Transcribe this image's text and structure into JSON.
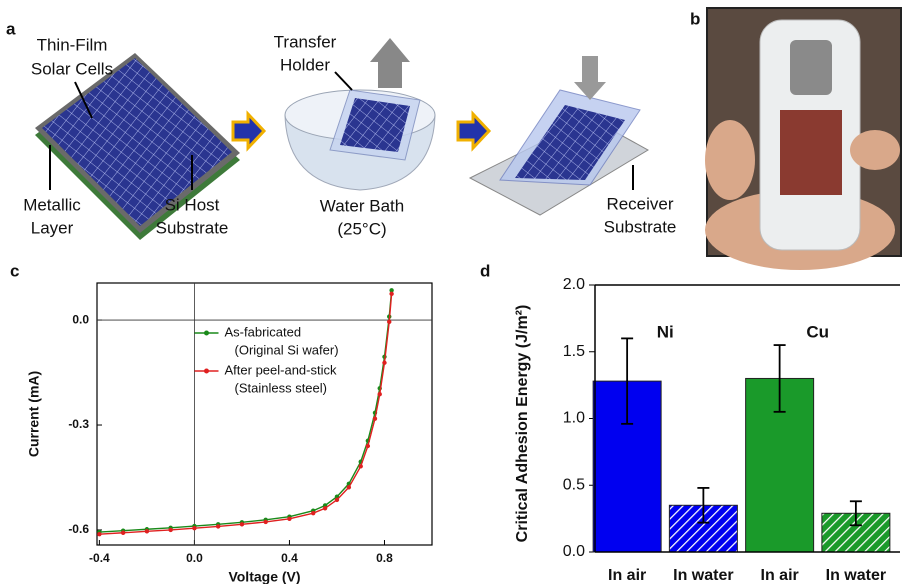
{
  "panel_a": {
    "label": "a",
    "labels": [
      [
        "Thin-Film",
        "Solar Cells"
      ],
      [
        "Metallic",
        "Layer"
      ],
      [
        "Si Host",
        "Substrate"
      ],
      [
        "Transfer",
        "Holder"
      ],
      [
        "Water Bath",
        "(25°C)"
      ],
      [
        "Receiver",
        "Substrate"
      ]
    ]
  },
  "panel_b": {
    "label": "b"
  },
  "chart_data": [
    {
      "type": "line",
      "panel": "c",
      "xlabel": "Voltage (V)",
      "ylabel": "Current (mA)",
      "x": [
        -0.4,
        -0.3,
        -0.2,
        -0.1,
        0,
        0.1,
        0.2,
        0.3,
        0.4,
        0.5,
        0.55,
        0.6,
        0.65,
        0.7,
        0.73,
        0.76,
        0.78,
        0.8,
        0.82,
        0.83
      ],
      "series": [
        {
          "name": "As-fabricated",
          "description": "(Original Si wafer)",
          "color": "#1a8a1a",
          "values": [
            -0.606,
            -0.602,
            -0.598,
            -0.594,
            -0.589,
            -0.584,
            -0.578,
            -0.571,
            -0.562,
            -0.545,
            -0.53,
            -0.505,
            -0.468,
            -0.405,
            -0.345,
            -0.265,
            -0.195,
            -0.105,
            0.01,
            0.085
          ]
        },
        {
          "name": "After peel-and-stick",
          "description": "(Stainless steel)",
          "color": "#e02020",
          "values": [
            -0.612,
            -0.608,
            -0.604,
            -0.6,
            -0.595,
            -0.59,
            -0.584,
            -0.577,
            -0.568,
            -0.552,
            -0.538,
            -0.514,
            -0.478,
            -0.418,
            -0.36,
            -0.282,
            -0.212,
            -0.122,
            -0.005,
            0.075
          ]
        }
      ],
      "xlim": [
        -0.41,
        1.0
      ],
      "ylim": [
        -0.643,
        0.106
      ],
      "xticks": [
        -0.4,
        {
          "value": 0,
          "label": "0.0"
        },
        0.4,
        0.8
      ],
      "yticks": [
        {
          "value": 0,
          "label": "0.0"
        },
        -0.3,
        -0.6
      ],
      "origin_lines": true,
      "legend": "upper center"
    },
    {
      "type": "bar",
      "panel": "d",
      "ylabel": "Critical Adhesion Energy (J/m²)",
      "categories": [
        "In air",
        "In water",
        "In air",
        "In water"
      ],
      "values": [
        1.28,
        0.35,
        1.3,
        0.29
      ],
      "errors": [
        0.32,
        0.13,
        0.25,
        0.09
      ],
      "colors": [
        "#0000f0",
        "#0000f0",
        "#1a9a2a",
        "#1a9a2a"
      ],
      "hatched": [
        false,
        true,
        false,
        true
      ],
      "groups": [
        {
          "text": "Ni",
          "color": "#1010e0"
        },
        {
          "text": "Cu",
          "color": "#1a9a2a"
        }
      ],
      "ylim": [
        0,
        2.0
      ],
      "yticks": [
        {
          "value": 0,
          "label": "0.0"
        },
        {
          "value": 0.5,
          "label": "0.5"
        },
        {
          "value": 1,
          "label": "1.0"
        },
        {
          "value": 1.5,
          "label": "1.5"
        },
        {
          "value": 2,
          "label": "2.0"
        }
      ]
    }
  ]
}
